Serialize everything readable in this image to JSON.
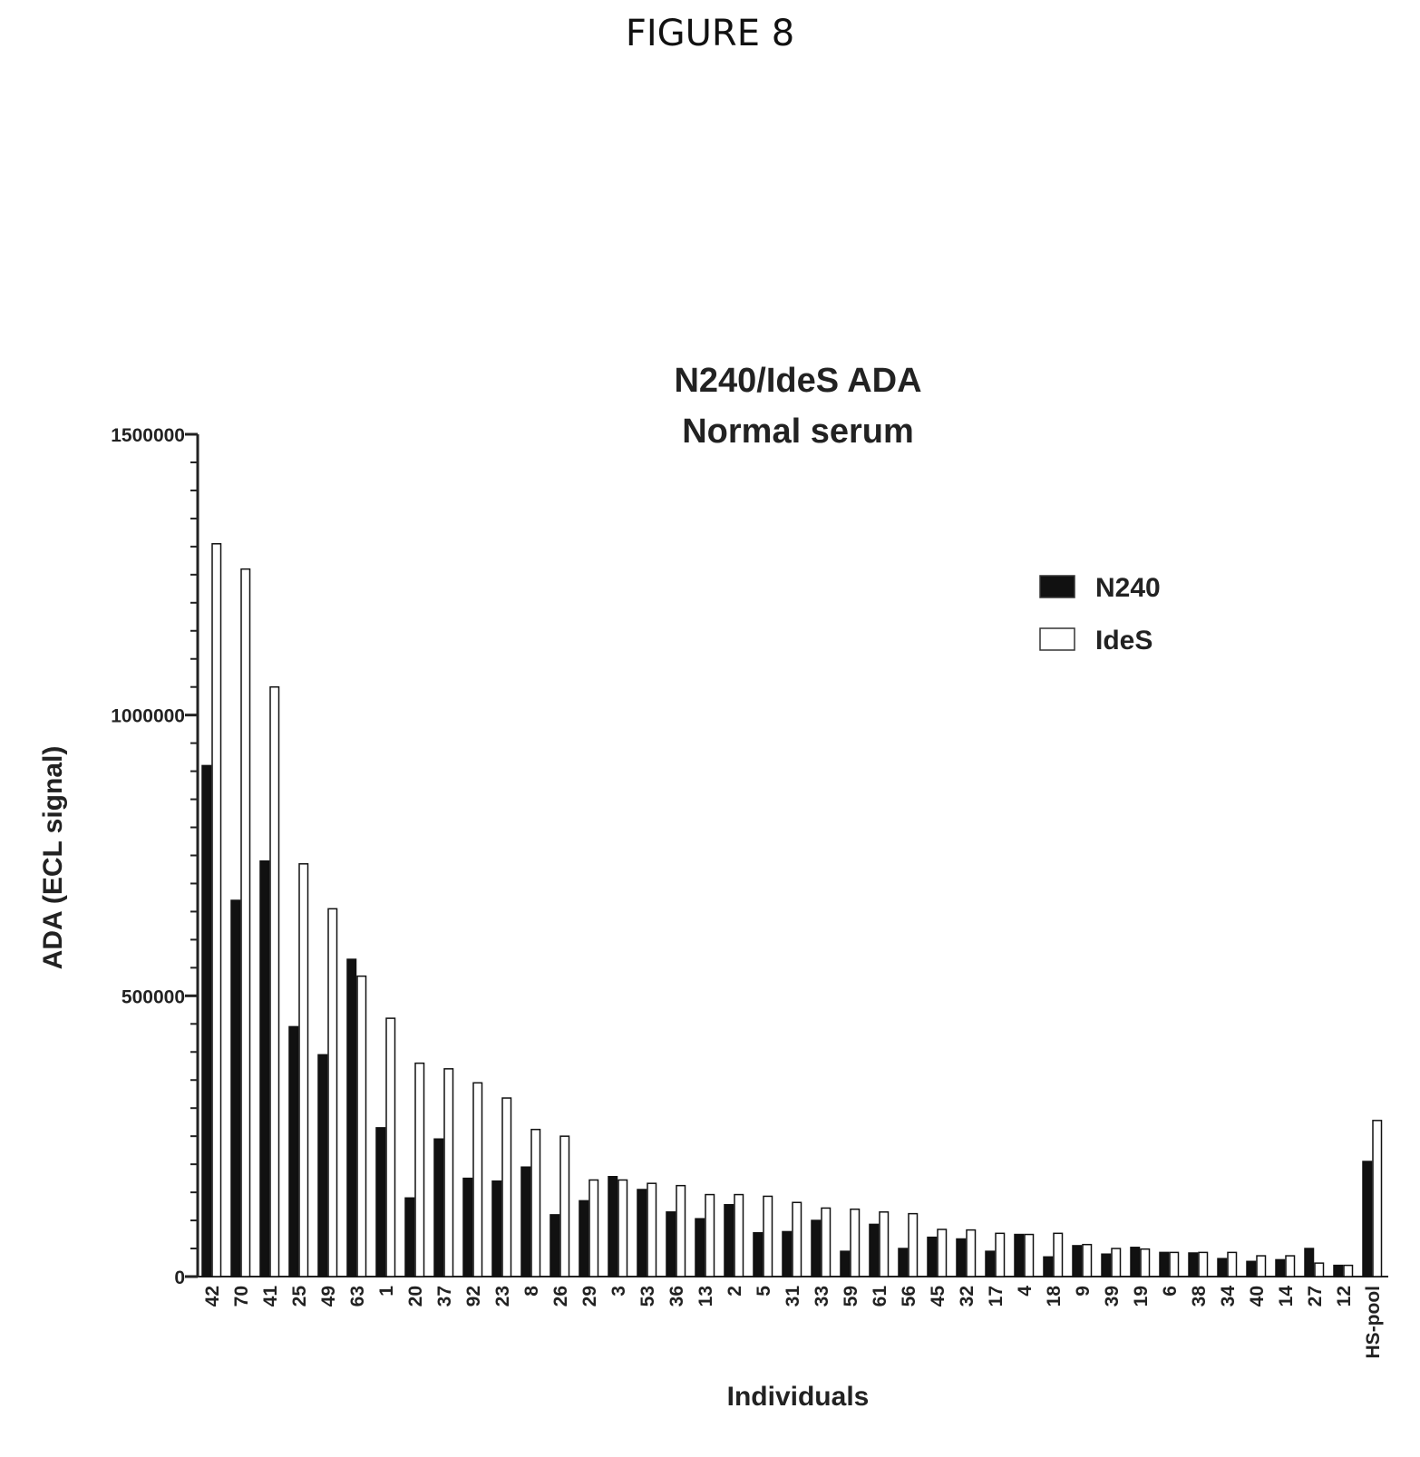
{
  "figure_label": "FIGURE 8",
  "chart_data": {
    "type": "bar",
    "title": [
      "N240/IdeS ADA",
      "Normal serum"
    ],
    "xlabel": "Individuals",
    "ylabel": "ADA (ECL signal)",
    "ylim": [
      0,
      1500000
    ],
    "yticks": [
      0,
      500000,
      1000000,
      1500000
    ],
    "ytick_labels": [
      "0",
      "500000",
      "1000000",
      "1500000"
    ],
    "legend_position": "top-right",
    "categories": [
      "42",
      "70",
      "41",
      "25",
      "49",
      "63",
      "1",
      "20",
      "37",
      "92",
      "23",
      "8",
      "26",
      "29",
      "3",
      "53",
      "36",
      "13",
      "2",
      "5",
      "31",
      "33",
      "59",
      "61",
      "56",
      "45",
      "32",
      "17",
      "4",
      "18",
      "9",
      "39",
      "19",
      "6",
      "38",
      "34",
      "40",
      "14",
      "27",
      "12",
      "HS-pool"
    ],
    "series": [
      {
        "name": "N240",
        "color": "#111111",
        "values": [
          910000,
          670000,
          740000,
          445000,
          395000,
          565000,
          265000,
          140000,
          245000,
          175000,
          170000,
          195000,
          110000,
          135000,
          178000,
          155000,
          115000,
          103000,
          128000,
          78000,
          80000,
          100000,
          45000,
          93000,
          50000,
          70000,
          67000,
          45000,
          75000,
          35000,
          55000,
          40000,
          52000,
          43000,
          42000,
          32000,
          27000,
          30000,
          50000,
          20000,
          205000
        ]
      },
      {
        "name": "IdeS",
        "color": "#ffffff",
        "values": [
          1305000,
          1260000,
          1050000,
          735000,
          655000,
          535000,
          460000,
          380000,
          370000,
          345000,
          318000,
          262000,
          250000,
          172000,
          172000,
          166000,
          162000,
          146000,
          146000,
          143000,
          132000,
          122000,
          120000,
          115000,
          112000,
          84000,
          83000,
          77000,
          75000,
          77000,
          57000,
          50000,
          49000,
          43000,
          43000,
          43000,
          37000,
          37000,
          24000,
          20000,
          278000
        ]
      }
    ]
  }
}
